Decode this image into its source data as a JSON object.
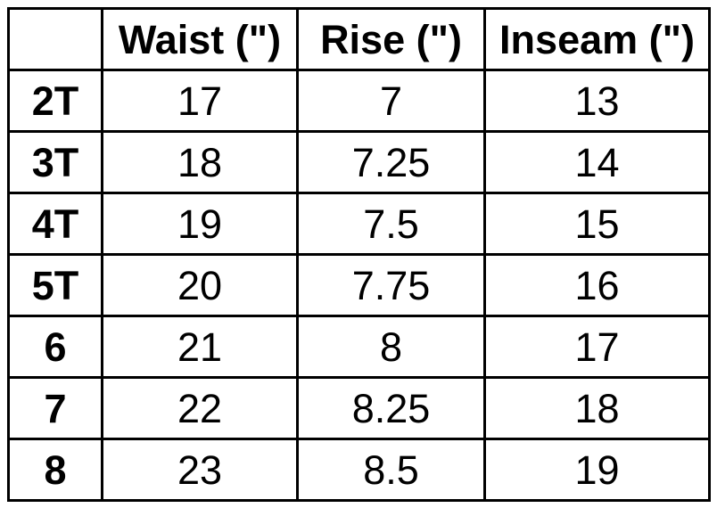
{
  "colors": {
    "border": "#000000",
    "text": "#000000",
    "cell_background": "#ffffff",
    "page_background": "#ffffff"
  },
  "chart_data": {
    "type": "table",
    "columns": [
      "",
      "Waist (\")",
      "Rise (\")",
      "Inseam (\")"
    ],
    "rows": [
      [
        "2T",
        "17",
        "7",
        "13"
      ],
      [
        "3T",
        "18",
        "7.25",
        "14"
      ],
      [
        "4T",
        "19",
        "7.5",
        "15"
      ],
      [
        "5T",
        "20",
        "7.75",
        "16"
      ],
      [
        "6",
        "21",
        "8",
        "17"
      ],
      [
        "7",
        "22",
        "8.25",
        "18"
      ],
      [
        "8",
        "23",
        "8.5",
        "19"
      ]
    ]
  }
}
